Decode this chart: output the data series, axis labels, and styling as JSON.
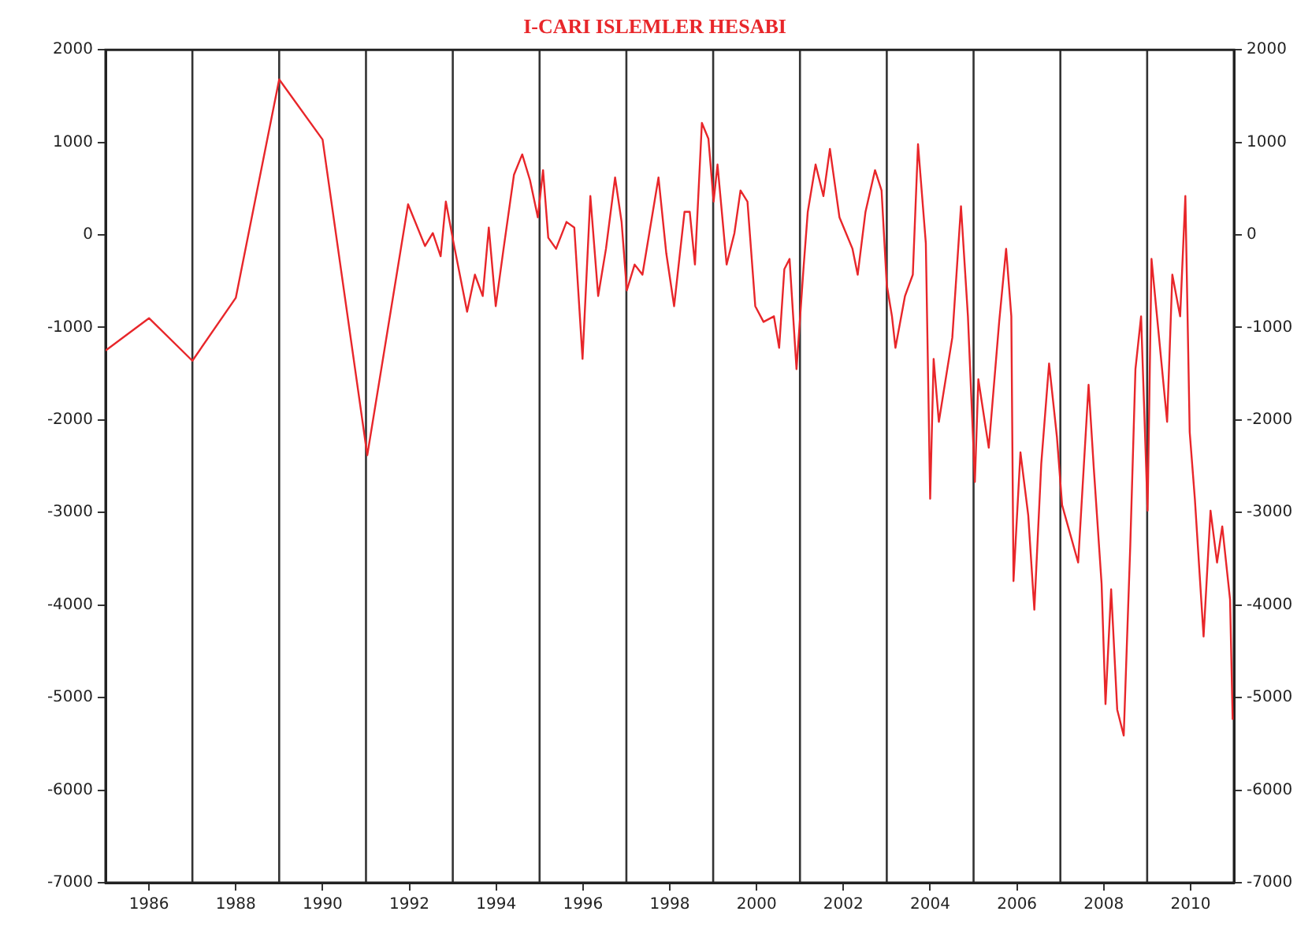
{
  "chart_data": {
    "type": "line",
    "title": "I-CARI ISLEMLER HESABI",
    "xlim": [
      1985,
      2011
    ],
    "xticks": [
      1986,
      1988,
      1990,
      1992,
      1994,
      1996,
      1998,
      2000,
      2002,
      2004,
      2006,
      2008,
      2010
    ],
    "ylim": [
      -7000,
      2000
    ],
    "yticks": [
      -7000,
      -6000,
      -5000,
      -4000,
      -3000,
      -2000,
      -1000,
      0,
      1000,
      2000
    ],
    "y2lim": [
      -7000,
      2000
    ],
    "y2ticks": [
      -7000,
      -6000,
      -5000,
      -4000,
      -3000,
      -2000,
      -1000,
      0,
      1000,
      2000
    ],
    "grid": false,
    "legend": false,
    "marker": "none",
    "line_style": "solid",
    "ref_lines": [
      {
        "axis": "x",
        "value": 1987,
        "color": "#333333"
      },
      {
        "axis": "x",
        "value": 1989,
        "color": "#333333"
      },
      {
        "axis": "x",
        "value": 1991,
        "color": "#333333"
      },
      {
        "axis": "x",
        "value": 1993,
        "color": "#333333"
      },
      {
        "axis": "x",
        "value": 1995,
        "color": "#333333"
      },
      {
        "axis": "x",
        "value": 1997,
        "color": "#333333"
      },
      {
        "axis": "x",
        "value": 1999,
        "color": "#333333"
      },
      {
        "axis": "x",
        "value": 2001,
        "color": "#333333"
      },
      {
        "axis": "x",
        "value": 2003,
        "color": "#333333"
      },
      {
        "axis": "x",
        "value": 2005,
        "color": "#333333"
      },
      {
        "axis": "x",
        "value": 2007,
        "color": "#333333"
      },
      {
        "axis": "x",
        "value": 2009,
        "color": "#333333"
      }
    ],
    "series": [
      {
        "color": "#e8262a",
        "x": [
          1985,
          1986,
          1987,
          1988,
          1989,
          1990,
          1991.03,
          1991.97,
          1992.36,
          1992.54,
          1992.72,
          1992.84,
          1993.02,
          1993.33,
          1993.51,
          1993.69,
          1993.83,
          1993.99,
          1994.17,
          1994.41,
          1994.6,
          1994.78,
          1994.96,
          1995.08,
          1995.2,
          1995.38,
          1995.62,
          1995.8,
          1995.99,
          1996.17,
          1996.35,
          1996.53,
          1996.74,
          1996.89,
          1997.01,
          1997.19,
          1997.37,
          1997.74,
          1997.92,
          1998.1,
          1998.34,
          1998.46,
          1998.58,
          1998.74,
          1998.89,
          1999.01,
          1999.1,
          1999.31,
          1999.49,
          1999.63,
          1999.79,
          1999.97,
          2000.16,
          2000.4,
          2000.52,
          2000.64,
          2000.76,
          2000.92,
          2001.08,
          2001.18,
          2001.36,
          2001.54,
          2001.69,
          2001.91,
          2002.21,
          2002.33,
          2002.51,
          2002.73,
          2002.88,
          2003.0,
          2003.12,
          2003.2,
          2003.42,
          2003.6,
          2003.72,
          2003.9,
          2004.0,
          2004.08,
          2004.2,
          2004.51,
          2004.71,
          2004.87,
          2005.03,
          2005.11,
          2005.35,
          2005.59,
          2005.75,
          2005.87,
          2005.92,
          2006.08,
          2006.26,
          2006.4,
          2006.56,
          2006.74,
          2006.92,
          2007.04,
          2007.41,
          2007.65,
          2007.77,
          2007.95,
          2008.04,
          2008.17,
          2008.31,
          2008.46,
          2008.61,
          2008.73,
          2008.86,
          2009.01,
          2009.1,
          2009.46,
          2009.58,
          2009.76,
          2009.88,
          2009.98,
          2010.1,
          2010.3,
          2010.46,
          2010.61,
          2010.73,
          2010.91,
          2010.97
        ],
        "values": [
          -1250,
          -900,
          -1360,
          -680,
          1680,
          1030,
          -2380,
          330,
          -120,
          20,
          -230,
          360,
          -90,
          -830,
          -430,
          -660,
          80,
          -770,
          -150,
          650,
          870,
          590,
          190,
          700,
          -30,
          -150,
          140,
          80,
          -1340,
          420,
          -660,
          -150,
          620,
          140,
          -600,
          -320,
          -430,
          620,
          -200,
          -770,
          250,
          250,
          -320,
          1210,
          1040,
          360,
          760,
          -320,
          20,
          480,
          360,
          -770,
          -940,
          -880,
          -1220,
          -370,
          -260,
          -1450,
          -370,
          250,
          760,
          420,
          930,
          190,
          -150,
          -430,
          250,
          700,
          480,
          -540,
          -880,
          -1220,
          -660,
          -430,
          980,
          -90,
          -2850,
          -1340,
          -2020,
          -1110,
          310,
          -880,
          -2670,
          -1560,
          -2300,
          -940,
          -150,
          -880,
          -3740,
          -2350,
          -3030,
          -4050,
          -2470,
          -1390,
          -2180,
          -2920,
          -3540,
          -1620,
          -2520,
          -3770,
          -5070,
          -3830,
          -5130,
          -5410,
          -3370,
          -1450,
          -880,
          -2980,
          -260,
          -2020,
          -430,
          -880,
          420,
          -2130,
          -2860,
          -4340,
          -2980,
          -3540,
          -3150,
          -3940,
          -5240
        ]
      }
    ]
  }
}
